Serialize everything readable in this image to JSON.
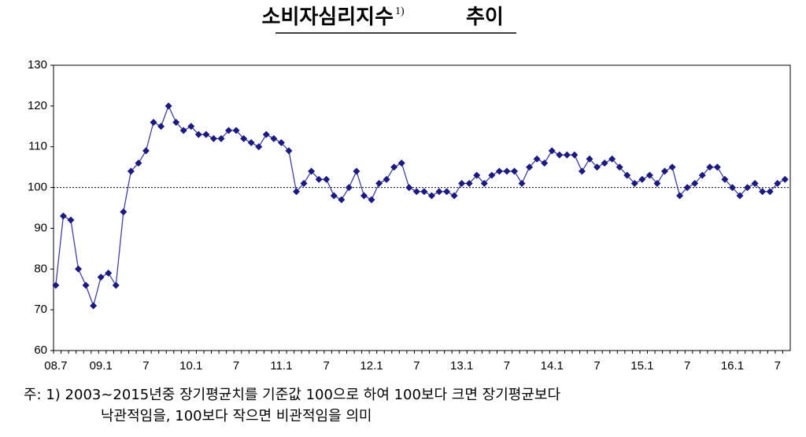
{
  "chart_data": {
    "type": "line",
    "title": "소비자심리지수",
    "title_note": "1)",
    "title_suffix": "추이",
    "categories": [
      "08.7",
      null,
      null,
      null,
      null,
      null,
      "09.1",
      null,
      null,
      null,
      null,
      null,
      "7",
      null,
      null,
      null,
      null,
      null,
      "10.1",
      null,
      null,
      null,
      null,
      null,
      "7",
      null,
      null,
      null,
      null,
      null,
      "11.1",
      null,
      null,
      null,
      null,
      null,
      "7",
      null,
      null,
      null,
      null,
      null,
      "12.1",
      null,
      null,
      null,
      null,
      null,
      "7",
      null,
      null,
      null,
      null,
      null,
      "13.1",
      null,
      null,
      null,
      null,
      null,
      "7",
      null,
      null,
      null,
      null,
      null,
      "14.1",
      null,
      null,
      null,
      null,
      null,
      "7",
      null,
      null,
      null,
      null,
      null,
      "15.1",
      null,
      null,
      null,
      null,
      null,
      "7",
      null,
      null,
      null,
      null,
      null,
      "16.1",
      null,
      null,
      null,
      null,
      null,
      "7",
      null
    ],
    "values": [
      76,
      93,
      92,
      80,
      76,
      71,
      78,
      79,
      76,
      94,
      104,
      106,
      109,
      116,
      115,
      120,
      116,
      114,
      115,
      113,
      113,
      112,
      112,
      114,
      114,
      112,
      111,
      110,
      113,
      112,
      111,
      109,
      99,
      101,
      104,
      102,
      102,
      98,
      97,
      100,
      104,
      98,
      97,
      101,
      102,
      105,
      106,
      100,
      99,
      99,
      98,
      99,
      99,
      98,
      101,
      101,
      103,
      101,
      103,
      104,
      104,
      104,
      101,
      105,
      107,
      106,
      109,
      108,
      108,
      108,
      104,
      107,
      105,
      106,
      107,
      105,
      103,
      101,
      102,
      103,
      101,
      104,
      105,
      98,
      100,
      101,
      103,
      105,
      105,
      102,
      100,
      98,
      100,
      101,
      99,
      99,
      101,
      102
    ],
    "color": "#1a1a80",
    "ylim": [
      60,
      130
    ],
    "yticks": [
      60,
      70,
      80,
      90,
      100,
      110,
      120,
      130
    ],
    "reference_line": 100,
    "footnote": [
      "주: 1) 2003~2015년중 장기평균치를 기준값 100으로 하여 100보다 크면 장기평균보다",
      "낙관적임을, 100보다 작으면 비관적임을 의미"
    ]
  }
}
